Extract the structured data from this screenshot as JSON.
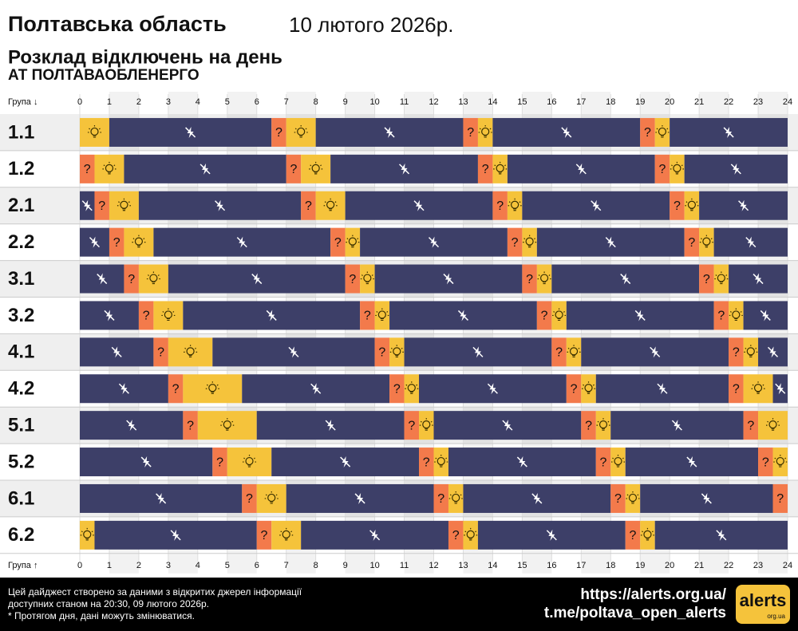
{
  "chart_data": {
    "type": "schedule",
    "title": "Полтавська область",
    "date": "10 лютого 2026р.",
    "subtitle": "Розклад відключень на день",
    "company": "АТ ПОЛТАВАОБЛЕНЕРГО",
    "group_label_top": "Група ↓",
    "group_label_bottom": "Група ↑",
    "xlim": [
      0,
      24
    ],
    "xticks": [
      0,
      1,
      2,
      3,
      4,
      5,
      6,
      7,
      8,
      9,
      10,
      11,
      12,
      13,
      14,
      15,
      16,
      17,
      18,
      19,
      20,
      21,
      22,
      23,
      24
    ],
    "states": {
      "on": {
        "color": "#f5c33b"
      },
      "off": {
        "color": "#3d3f68"
      },
      "maybe": {
        "color": "#f37a4b",
        "label": "?"
      }
    },
    "rows": [
      {
        "name": "1.1",
        "segments": [
          [
            0,
            1,
            "on"
          ],
          [
            1,
            6.5,
            "off"
          ],
          [
            6.5,
            7,
            "maybe"
          ],
          [
            7,
            8,
            "on"
          ],
          [
            8,
            13,
            "off"
          ],
          [
            13,
            13.5,
            "maybe"
          ],
          [
            13.5,
            14,
            "on"
          ],
          [
            14,
            19,
            "off"
          ],
          [
            19,
            19.5,
            "maybe"
          ],
          [
            19.5,
            20,
            "on"
          ],
          [
            20,
            24,
            "off"
          ]
        ]
      },
      {
        "name": "1.2",
        "segments": [
          [
            0,
            0.5,
            "maybe"
          ],
          [
            0.5,
            1.5,
            "on"
          ],
          [
            1.5,
            7,
            "off"
          ],
          [
            7,
            7.5,
            "maybe"
          ],
          [
            7.5,
            8.5,
            "on"
          ],
          [
            8.5,
            13.5,
            "off"
          ],
          [
            13.5,
            14,
            "maybe"
          ],
          [
            14,
            14.5,
            "on"
          ],
          [
            14.5,
            19.5,
            "off"
          ],
          [
            19.5,
            20,
            "maybe"
          ],
          [
            20,
            20.5,
            "on"
          ],
          [
            20.5,
            24,
            "off"
          ]
        ]
      },
      {
        "name": "2.1",
        "segments": [
          [
            0,
            0.5,
            "off"
          ],
          [
            0.5,
            1,
            "maybe"
          ],
          [
            1,
            2,
            "on"
          ],
          [
            2,
            7.5,
            "off"
          ],
          [
            7.5,
            8,
            "maybe"
          ],
          [
            8,
            9,
            "on"
          ],
          [
            9,
            14,
            "off"
          ],
          [
            14,
            14.5,
            "maybe"
          ],
          [
            14.5,
            15,
            "on"
          ],
          [
            15,
            20,
            "off"
          ],
          [
            20,
            20.5,
            "maybe"
          ],
          [
            20.5,
            21,
            "on"
          ],
          [
            21,
            24,
            "off"
          ]
        ]
      },
      {
        "name": "2.2",
        "segments": [
          [
            0,
            1,
            "off"
          ],
          [
            1,
            1.5,
            "maybe"
          ],
          [
            1.5,
            2.5,
            "on"
          ],
          [
            2.5,
            8.5,
            "off"
          ],
          [
            8.5,
            9,
            "maybe"
          ],
          [
            9,
            9.5,
            "on"
          ],
          [
            9.5,
            14.5,
            "off"
          ],
          [
            14.5,
            15,
            "maybe"
          ],
          [
            15,
            15.5,
            "on"
          ],
          [
            15.5,
            20.5,
            "off"
          ],
          [
            20.5,
            21,
            "maybe"
          ],
          [
            21,
            21.5,
            "on"
          ],
          [
            21.5,
            24,
            "off"
          ]
        ]
      },
      {
        "name": "3.1",
        "segments": [
          [
            0,
            1.5,
            "off"
          ],
          [
            1.5,
            2,
            "maybe"
          ],
          [
            2,
            3,
            "on"
          ],
          [
            3,
            9,
            "off"
          ],
          [
            9,
            9.5,
            "maybe"
          ],
          [
            9.5,
            10,
            "on"
          ],
          [
            10,
            15,
            "off"
          ],
          [
            15,
            15.5,
            "maybe"
          ],
          [
            15.5,
            16,
            "on"
          ],
          [
            16,
            21,
            "off"
          ],
          [
            21,
            21.5,
            "maybe"
          ],
          [
            21.5,
            22,
            "on"
          ],
          [
            22,
            24,
            "off"
          ]
        ]
      },
      {
        "name": "3.2",
        "segments": [
          [
            0,
            2,
            "off"
          ],
          [
            2,
            2.5,
            "maybe"
          ],
          [
            2.5,
            3.5,
            "on"
          ],
          [
            3.5,
            9.5,
            "off"
          ],
          [
            9.5,
            10,
            "maybe"
          ],
          [
            10,
            10.5,
            "on"
          ],
          [
            10.5,
            15.5,
            "off"
          ],
          [
            15.5,
            16,
            "maybe"
          ],
          [
            16,
            16.5,
            "on"
          ],
          [
            16.5,
            21.5,
            "off"
          ],
          [
            21.5,
            22,
            "maybe"
          ],
          [
            22,
            22.5,
            "on"
          ],
          [
            22.5,
            24,
            "off"
          ]
        ]
      },
      {
        "name": "4.1",
        "segments": [
          [
            0,
            2.5,
            "off"
          ],
          [
            2.5,
            3,
            "maybe"
          ],
          [
            3,
            4.5,
            "on"
          ],
          [
            4.5,
            10,
            "off"
          ],
          [
            10,
            10.5,
            "maybe"
          ],
          [
            10.5,
            11,
            "on"
          ],
          [
            11,
            16,
            "off"
          ],
          [
            16,
            16.5,
            "maybe"
          ],
          [
            16.5,
            17,
            "on"
          ],
          [
            17,
            22,
            "off"
          ],
          [
            22,
            22.5,
            "maybe"
          ],
          [
            22.5,
            23,
            "on"
          ],
          [
            23,
            24,
            "off"
          ]
        ]
      },
      {
        "name": "4.2",
        "segments": [
          [
            0,
            3,
            "off"
          ],
          [
            3,
            3.5,
            "maybe"
          ],
          [
            3.5,
            5.5,
            "on"
          ],
          [
            5.5,
            10.5,
            "off"
          ],
          [
            10.5,
            11,
            "maybe"
          ],
          [
            11,
            11.5,
            "on"
          ],
          [
            11.5,
            16.5,
            "off"
          ],
          [
            16.5,
            17,
            "maybe"
          ],
          [
            17,
            17.5,
            "on"
          ],
          [
            17.5,
            22,
            "off"
          ],
          [
            22,
            22.5,
            "maybe"
          ],
          [
            22.5,
            23.5,
            "on"
          ],
          [
            23.5,
            24,
            "off"
          ]
        ]
      },
      {
        "name": "5.1",
        "segments": [
          [
            0,
            3.5,
            "off"
          ],
          [
            3.5,
            4,
            "maybe"
          ],
          [
            4,
            6,
            "on"
          ],
          [
            6,
            11,
            "off"
          ],
          [
            11,
            11.5,
            "maybe"
          ],
          [
            11.5,
            12,
            "on"
          ],
          [
            12,
            17,
            "off"
          ],
          [
            17,
            17.5,
            "maybe"
          ],
          [
            17.5,
            18,
            "on"
          ],
          [
            18,
            22.5,
            "off"
          ],
          [
            22.5,
            23,
            "maybe"
          ],
          [
            23,
            24,
            "on"
          ]
        ]
      },
      {
        "name": "5.2",
        "segments": [
          [
            0,
            4.5,
            "off"
          ],
          [
            4.5,
            5,
            "maybe"
          ],
          [
            5,
            6.5,
            "on"
          ],
          [
            6.5,
            11.5,
            "off"
          ],
          [
            11.5,
            12,
            "maybe"
          ],
          [
            12,
            12.5,
            "on"
          ],
          [
            12.5,
            17.5,
            "off"
          ],
          [
            17.5,
            18,
            "maybe"
          ],
          [
            18,
            18.5,
            "on"
          ],
          [
            18.5,
            23,
            "off"
          ],
          [
            23,
            23.5,
            "maybe"
          ],
          [
            23.5,
            24,
            "on"
          ]
        ]
      },
      {
        "name": "6.1",
        "segments": [
          [
            0,
            5.5,
            "off"
          ],
          [
            5.5,
            6,
            "maybe"
          ],
          [
            6,
            7,
            "on"
          ],
          [
            7,
            12,
            "off"
          ],
          [
            12,
            12.5,
            "maybe"
          ],
          [
            12.5,
            13,
            "on"
          ],
          [
            13,
            18,
            "off"
          ],
          [
            18,
            18.5,
            "maybe"
          ],
          [
            18.5,
            19,
            "on"
          ],
          [
            19,
            23.5,
            "off"
          ],
          [
            23.5,
            24,
            "maybe"
          ]
        ]
      },
      {
        "name": "6.2",
        "segments": [
          [
            0,
            0.5,
            "on"
          ],
          [
            0.5,
            6,
            "off"
          ],
          [
            6,
            6.5,
            "maybe"
          ],
          [
            6.5,
            7.5,
            "on"
          ],
          [
            7.5,
            12.5,
            "off"
          ],
          [
            12.5,
            13,
            "maybe"
          ],
          [
            13,
            13.5,
            "on"
          ],
          [
            13.5,
            18.5,
            "off"
          ],
          [
            18.5,
            19,
            "maybe"
          ],
          [
            19,
            19.5,
            "on"
          ],
          [
            19.5,
            24,
            "off"
          ]
        ]
      }
    ],
    "footer": {
      "notes": [
        "Цей дайджест створено за даними з відкритих джерел інформації",
        "доступних станом на 20:30, 09 лютого 2026р.",
        "* Протягом дня, дані можуть змінюватися."
      ],
      "links": [
        "https://alerts.org.ua/",
        "t.me/poltava_open_alerts"
      ],
      "logo": "alerts",
      "logo_sub": "org.ua"
    }
  }
}
